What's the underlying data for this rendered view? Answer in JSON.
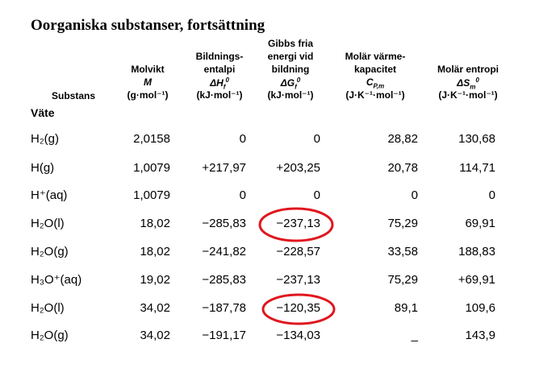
{
  "title": "Oorganiska substanser, fortsättning",
  "table": {
    "substance_header": "Substans",
    "group": "Väte",
    "columns": [
      {
        "lines": [
          "Molvikt",
          {
            "base": "M"
          },
          "(g·mol⁻¹)"
        ]
      },
      {
        "lines": [
          "Bildnings-",
          "entalpi",
          {
            "base": "ΔH",
            "sub": "f",
            "sup": "0"
          },
          "(kJ·mol⁻¹)"
        ]
      },
      {
        "lines": [
          "Gibbs fria",
          "energi vid",
          "bildning",
          {
            "base": "ΔG",
            "sub": "f",
            "sup": "0"
          },
          "(kJ·mol⁻¹)"
        ]
      },
      {
        "lines": [
          "Molär värme-",
          "kapacitet",
          {
            "base": "C",
            "sub": "P,m"
          },
          "(J·K⁻¹·mol⁻¹)"
        ]
      },
      {
        "lines": [
          "Molär entropi",
          {
            "base": "ΔS",
            "sub": "m",
            "sup": "0"
          },
          "(J·K⁻¹·mol⁻¹)"
        ]
      }
    ],
    "rows": [
      [
        "H₂(g)",
        "2,0158",
        "0",
        "0",
        "28,82",
        "130,68"
      ],
      [
        "H(g)",
        "1,0079",
        "+217,97",
        "+203,25",
        "20,78",
        "114,71"
      ],
      [
        "H⁺(aq)",
        "1,0079",
        "0",
        "0",
        "0",
        "0"
      ],
      [
        "H₂O(l)",
        "18,02",
        "−285,83",
        "−237,13",
        "75,29",
        "69,91"
      ],
      [
        "H₂O(g)",
        "18,02",
        "−241,82",
        "−228,57",
        "33,58",
        "188,83"
      ],
      [
        "H₃O⁺(aq)",
        "19,02",
        "−285,83",
        "−237,13",
        "75,29",
        "+69,91"
      ],
      [
        "H₂O(l)",
        "34,02",
        "−187,78",
        "−120,35",
        "89,1",
        "109,6"
      ],
      [
        "H₂O(g)",
        "34,02",
        "−191,17",
        "−134,03",
        "_",
        "143,9"
      ]
    ]
  }
}
